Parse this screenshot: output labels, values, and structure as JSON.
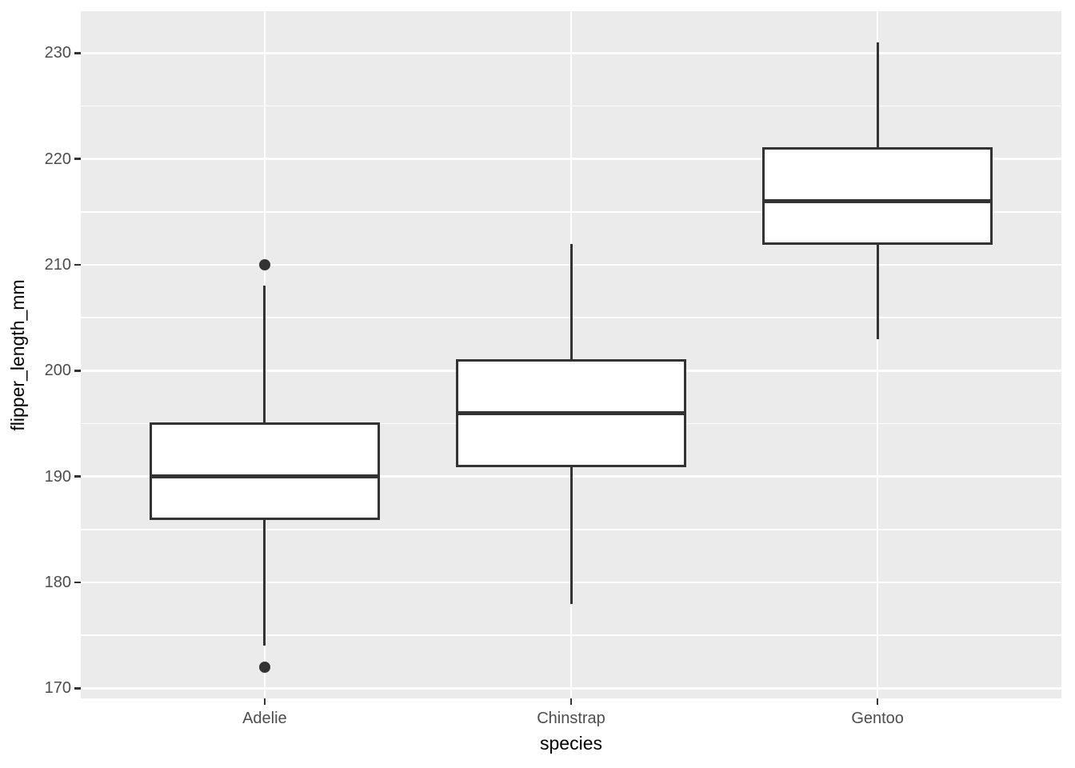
{
  "figure": {
    "background": "#FFFFFF",
    "panel_background": "#EBEBEB",
    "gridline_color": "#FFFFFF",
    "box_fill": "#FFFFFF",
    "box_border_color": "#333333",
    "median_color": "#333333",
    "outlier_color": "#333333",
    "tick_mark_color": "#333333",
    "tick_label_color": "#4D4D4D",
    "axis_title_color": "#000000"
  },
  "chart_data": {
    "type": "boxplot",
    "title": "",
    "xlabel": "species",
    "ylabel": "flipper_length_mm",
    "categories": [
      "Adelie",
      "Chinstrap",
      "Gentoo"
    ],
    "y_ticks": [
      170,
      180,
      190,
      200,
      210,
      220,
      230
    ],
    "y_minor_ticks": [
      175,
      185,
      195,
      205,
      215,
      225
    ],
    "ylim": [
      169.05,
      233.95
    ],
    "grid": "horizontal major+minor, vertical major at category centers",
    "legend_position": "none",
    "boxes": [
      {
        "category": "Adelie",
        "whisker_low": 174,
        "q1": 186,
        "median": 190,
        "q3": 195,
        "whisker_high": 208,
        "outliers": [
          172,
          210
        ]
      },
      {
        "category": "Chinstrap",
        "whisker_low": 178,
        "q1": 191,
        "median": 196,
        "q3": 201,
        "whisker_high": 212,
        "outliers": []
      },
      {
        "category": "Gentoo",
        "whisker_low": 203,
        "q1": 212,
        "median": 216,
        "q3": 221,
        "whisker_high": 231,
        "outliers": []
      }
    ]
  }
}
